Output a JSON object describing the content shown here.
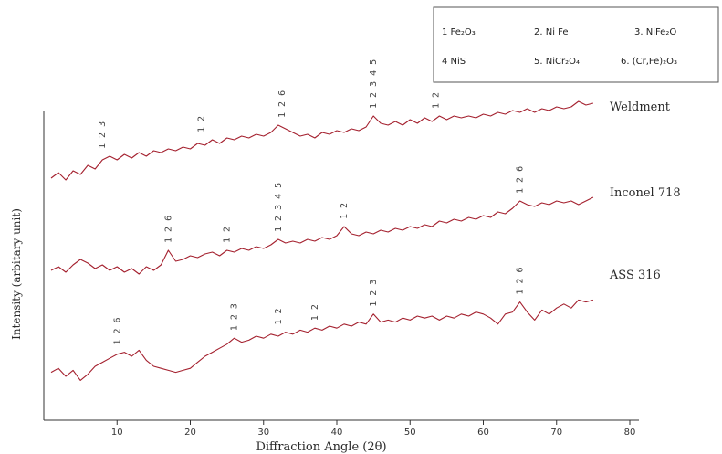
{
  "chart_data": {
    "type": "line",
    "title": "",
    "xlabel": "Diffraction Angle (2θ)",
    "ylabel": "Intensity (arbitary unit)",
    "xlim": [
      0,
      80
    ],
    "xticks": [
      10,
      20,
      30,
      40,
      50,
      60,
      70,
      80
    ],
    "xtick_labels": [
      "10",
      "20",
      "30",
      "40",
      "50",
      "60",
      "70",
      "80"
    ],
    "legend": {
      "placement": "top-right",
      "entries": [
        "1 Fe₂O₃",
        "2. Ni Fe",
        "3. NiFe₂O",
        "4 NiS",
        "5. NiCr₂O₄",
        "6. (Cr,Fe)₂O₃"
      ]
    },
    "series": [
      {
        "name": "Weldment",
        "color": "#a4202e",
        "points": [
          [
            1,
            -6
          ],
          [
            2,
            -3
          ],
          [
            3,
            -7
          ],
          [
            4,
            -2
          ],
          [
            5,
            -4
          ],
          [
            6,
            1
          ],
          [
            7,
            -1
          ],
          [
            8,
            4
          ],
          [
            9,
            6
          ],
          [
            10,
            4
          ],
          [
            11,
            7
          ],
          [
            12,
            5
          ],
          [
            13,
            8
          ],
          [
            14,
            6
          ],
          [
            15,
            9
          ],
          [
            16,
            8
          ],
          [
            17,
            10
          ],
          [
            18,
            9
          ],
          [
            19,
            11
          ],
          [
            20,
            10
          ],
          [
            21,
            13
          ],
          [
            22,
            12
          ],
          [
            23,
            15
          ],
          [
            24,
            13
          ],
          [
            25,
            16
          ],
          [
            26,
            15
          ],
          [
            27,
            17
          ],
          [
            28,
            16
          ],
          [
            29,
            18
          ],
          [
            30,
            17
          ],
          [
            31,
            19
          ],
          [
            32,
            23
          ],
          [
            33,
            21
          ],
          [
            34,
            19
          ],
          [
            35,
            17
          ],
          [
            36,
            18
          ],
          [
            37,
            16
          ],
          [
            38,
            19
          ],
          [
            39,
            18
          ],
          [
            40,
            20
          ],
          [
            41,
            19
          ],
          [
            42,
            21
          ],
          [
            43,
            20
          ],
          [
            44,
            22
          ],
          [
            45,
            28
          ],
          [
            46,
            24
          ],
          [
            47,
            23
          ],
          [
            48,
            25
          ],
          [
            49,
            23
          ],
          [
            50,
            26
          ],
          [
            51,
            24
          ],
          [
            52,
            27
          ],
          [
            53,
            25
          ],
          [
            54,
            28
          ],
          [
            55,
            26
          ],
          [
            56,
            28
          ],
          [
            57,
            27
          ],
          [
            58,
            28
          ],
          [
            59,
            27
          ],
          [
            60,
            29
          ],
          [
            61,
            28
          ],
          [
            62,
            30
          ],
          [
            63,
            29
          ],
          [
            64,
            31
          ],
          [
            65,
            30
          ],
          [
            66,
            32
          ],
          [
            67,
            30
          ],
          [
            68,
            32
          ],
          [
            69,
            31
          ],
          [
            70,
            33
          ],
          [
            71,
            32
          ],
          [
            72,
            33
          ],
          [
            73,
            36
          ],
          [
            74,
            34
          ],
          [
            75,
            35
          ]
        ]
      },
      {
        "name": "Inconel 718",
        "color": "#a4202e",
        "points": [
          [
            1,
            -2
          ],
          [
            2,
            0
          ],
          [
            3,
            -3
          ],
          [
            4,
            1
          ],
          [
            5,
            4
          ],
          [
            6,
            2
          ],
          [
            7,
            -1
          ],
          [
            8,
            1
          ],
          [
            9,
            -2
          ],
          [
            10,
            0
          ],
          [
            11,
            -3
          ],
          [
            12,
            -1
          ],
          [
            13,
            -4
          ],
          [
            14,
            0
          ],
          [
            15,
            -2
          ],
          [
            16,
            1
          ],
          [
            17,
            9
          ],
          [
            18,
            3
          ],
          [
            19,
            4
          ],
          [
            20,
            6
          ],
          [
            21,
            5
          ],
          [
            22,
            7
          ],
          [
            23,
            8
          ],
          [
            24,
            6
          ],
          [
            25,
            9
          ],
          [
            26,
            8
          ],
          [
            27,
            10
          ],
          [
            28,
            9
          ],
          [
            29,
            11
          ],
          [
            30,
            10
          ],
          [
            31,
            12
          ],
          [
            32,
            15
          ],
          [
            33,
            13
          ],
          [
            34,
            14
          ],
          [
            35,
            13
          ],
          [
            36,
            15
          ],
          [
            37,
            14
          ],
          [
            38,
            16
          ],
          [
            39,
            15
          ],
          [
            40,
            17
          ],
          [
            41,
            22
          ],
          [
            42,
            18
          ],
          [
            43,
            17
          ],
          [
            44,
            19
          ],
          [
            45,
            18
          ],
          [
            46,
            20
          ],
          [
            47,
            19
          ],
          [
            48,
            21
          ],
          [
            49,
            20
          ],
          [
            50,
            22
          ],
          [
            51,
            21
          ],
          [
            52,
            23
          ],
          [
            53,
            22
          ],
          [
            54,
            25
          ],
          [
            55,
            24
          ],
          [
            56,
            26
          ],
          [
            57,
            25
          ],
          [
            58,
            27
          ],
          [
            59,
            26
          ],
          [
            60,
            28
          ],
          [
            61,
            27
          ],
          [
            62,
            30
          ],
          [
            63,
            29
          ],
          [
            64,
            32
          ],
          [
            65,
            36
          ],
          [
            66,
            34
          ],
          [
            67,
            33
          ],
          [
            68,
            35
          ],
          [
            69,
            34
          ],
          [
            70,
            36
          ],
          [
            71,
            35
          ],
          [
            72,
            36
          ],
          [
            73,
            34
          ],
          [
            74,
            36
          ],
          [
            75,
            38
          ]
        ]
      },
      {
        "name": "ASS 316",
        "color": "#a4202e",
        "points": [
          [
            1,
            -8
          ],
          [
            2,
            -6
          ],
          [
            3,
            -10
          ],
          [
            4,
            -7
          ],
          [
            5,
            -12
          ],
          [
            6,
            -9
          ],
          [
            7,
            -5
          ],
          [
            8,
            -3
          ],
          [
            9,
            -1
          ],
          [
            10,
            1
          ],
          [
            11,
            2
          ],
          [
            12,
            0
          ],
          [
            13,
            3
          ],
          [
            14,
            -2
          ],
          [
            15,
            -5
          ],
          [
            16,
            -6
          ],
          [
            17,
            -7
          ],
          [
            18,
            -8
          ],
          [
            19,
            -7
          ],
          [
            20,
            -6
          ],
          [
            21,
            -3
          ],
          [
            22,
            0
          ],
          [
            23,
            2
          ],
          [
            24,
            4
          ],
          [
            25,
            6
          ],
          [
            26,
            9
          ],
          [
            27,
            7
          ],
          [
            28,
            8
          ],
          [
            29,
            10
          ],
          [
            30,
            9
          ],
          [
            31,
            11
          ],
          [
            32,
            10
          ],
          [
            33,
            12
          ],
          [
            34,
            11
          ],
          [
            35,
            13
          ],
          [
            36,
            12
          ],
          [
            37,
            14
          ],
          [
            38,
            13
          ],
          [
            39,
            15
          ],
          [
            40,
            14
          ],
          [
            41,
            16
          ],
          [
            42,
            15
          ],
          [
            43,
            17
          ],
          [
            44,
            16
          ],
          [
            45,
            21
          ],
          [
            46,
            17
          ],
          [
            47,
            18
          ],
          [
            48,
            17
          ],
          [
            49,
            19
          ],
          [
            50,
            18
          ],
          [
            51,
            20
          ],
          [
            52,
            19
          ],
          [
            53,
            20
          ],
          [
            54,
            18
          ],
          [
            55,
            20
          ],
          [
            56,
            19
          ],
          [
            57,
            21
          ],
          [
            58,
            20
          ],
          [
            59,
            22
          ],
          [
            60,
            21
          ],
          [
            61,
            19
          ],
          [
            62,
            16
          ],
          [
            63,
            21
          ],
          [
            64,
            22
          ],
          [
            65,
            27
          ],
          [
            66,
            22
          ],
          [
            67,
            18
          ],
          [
            68,
            23
          ],
          [
            69,
            21
          ],
          [
            70,
            24
          ],
          [
            71,
            26
          ],
          [
            72,
            24
          ],
          [
            73,
            28
          ],
          [
            74,
            27
          ],
          [
            75,
            28
          ]
        ]
      }
    ],
    "peak_labels": [
      {
        "series": "Weldment",
        "x": 8,
        "text": "1 2 3"
      },
      {
        "series": "Weldment",
        "x": 21.5,
        "text": "1 2"
      },
      {
        "series": "Weldment",
        "x": 32.5,
        "text": "1 2 6"
      },
      {
        "series": "Weldment",
        "x": 45,
        "text": "1 2 3 4 5"
      },
      {
        "series": "Weldment",
        "x": 53.5,
        "text": "1 2"
      },
      {
        "series": "Inconel 718",
        "x": 17,
        "text": "1 2 6"
      },
      {
        "series": "Inconel 718",
        "x": 25,
        "text": "1 2"
      },
      {
        "series": "Inconel 718",
        "x": 32,
        "text": "1 2 3 4 5"
      },
      {
        "series": "Inconel 718",
        "x": 41,
        "text": "1 2"
      },
      {
        "series": "Inconel 718",
        "x": 65,
        "text": "1 2 6"
      },
      {
        "series": "ASS 316",
        "x": 10,
        "text": "1 2 6"
      },
      {
        "series": "ASS 316",
        "x": 26,
        "text": "1 2 3"
      },
      {
        "series": "ASS 316",
        "x": 32,
        "text": "1 2"
      },
      {
        "series": "ASS 316",
        "x": 37,
        "text": "1 2"
      },
      {
        "series": "ASS 316",
        "x": 45,
        "text": "1 2 3"
      },
      {
        "series": "ASS 316",
        "x": 65,
        "text": "1 2 6"
      }
    ],
    "grid": false
  }
}
